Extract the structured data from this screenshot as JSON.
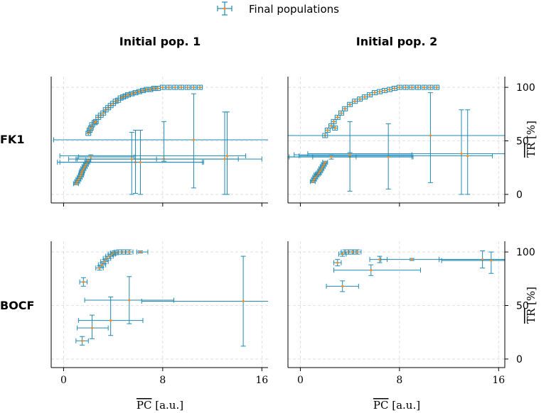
{
  "colors": {
    "errorbar": "#1f8ab4",
    "marker": "#ff8c1a",
    "grid": "#d9d9d9",
    "axis": "#000000"
  },
  "legend": {
    "label": "Final populations"
  },
  "column_titles": [
    "Initial pop. 1",
    "Initial pop. 2"
  ],
  "row_titles": [
    "FK1",
    "BOCF"
  ],
  "axis_text": {
    "xlabel_bar": "PC",
    "xlabel_unit": " [a.u.]",
    "ylabel_bar": "TR",
    "ylabel_unit": " [%]",
    "xticks": [
      "0",
      "8",
      "16"
    ],
    "yticks": [
      "0",
      "50",
      "100"
    ]
  },
  "chart_data": [
    {
      "type": "scatter",
      "title": "FK1 – Initial pop. 1",
      "xlim": [
        -1,
        16.5
      ],
      "ylim": [
        -8,
        110
      ],
      "xticks": [
        0,
        8,
        16
      ],
      "yticks": [
        0,
        50,
        100
      ],
      "grid": true,
      "points": [
        [
          1.0,
          10,
          0.2,
          0.2,
          1,
          1
        ],
        [
          1.1,
          12,
          0.2,
          0.2,
          1,
          1
        ],
        [
          1.2,
          14,
          0.2,
          0.2,
          1,
          1
        ],
        [
          1.3,
          16,
          0.2,
          0.2,
          1,
          1
        ],
        [
          1.4,
          18,
          0.2,
          0.2,
          1,
          1
        ],
        [
          1.45,
          20,
          0.2,
          0.2,
          1,
          1
        ],
        [
          1.5,
          22,
          0.2,
          0.2,
          1,
          1
        ],
        [
          1.6,
          24,
          0.2,
          0.2,
          1,
          1
        ],
        [
          1.7,
          26,
          0.2,
          0.2,
          1,
          1
        ],
        [
          1.8,
          28,
          0.2,
          0.2,
          1,
          1
        ],
        [
          1.9,
          30,
          0.2,
          0.2,
          1,
          1
        ],
        [
          2.0,
          32,
          0.2,
          0.2,
          1,
          1
        ],
        [
          2.0,
          57,
          0.2,
          0.2,
          2,
          2
        ],
        [
          2.1,
          60,
          0.2,
          0.2,
          2,
          2
        ],
        [
          2.2,
          62,
          0.2,
          0.2,
          2,
          2
        ],
        [
          2.3,
          65,
          0.2,
          0.2,
          2,
          2
        ],
        [
          2.5,
          67,
          0.2,
          0.2,
          2,
          2
        ],
        [
          2.6,
          68,
          0.2,
          0.2,
          2,
          2
        ],
        [
          2.8,
          72,
          0.2,
          0.2,
          2,
          2
        ],
        [
          3.0,
          74,
          0.2,
          0.2,
          2,
          2
        ],
        [
          3.2,
          76,
          0.2,
          0.2,
          2,
          2
        ],
        [
          3.4,
          79,
          0.2,
          0.2,
          2,
          2
        ],
        [
          3.6,
          81,
          0.2,
          0.2,
          2,
          2
        ],
        [
          3.8,
          83,
          0.2,
          0.2,
          2,
          2
        ],
        [
          4.0,
          85,
          0.2,
          0.2,
          2,
          2
        ],
        [
          4.2,
          87,
          0.2,
          0.2,
          2,
          2
        ],
        [
          4.4,
          88,
          0.2,
          0.2,
          2,
          2
        ],
        [
          4.6,
          90,
          0.2,
          0.2,
          2,
          2
        ],
        [
          4.8,
          91,
          0.2,
          0.2,
          2,
          2
        ],
        [
          5.0,
          92,
          0.2,
          0.2,
          2,
          2
        ],
        [
          5.2,
          93,
          0.2,
          0.2,
          2,
          2
        ],
        [
          5.5,
          94,
          0.2,
          0.2,
          2,
          2
        ],
        [
          5.8,
          95,
          0.2,
          0.2,
          2,
          2
        ],
        [
          6.1,
          96,
          0.2,
          0.2,
          2,
          2
        ],
        [
          6.4,
          97,
          0.2,
          0.2,
          2,
          2
        ],
        [
          6.7,
          98,
          0.2,
          0.2,
          2,
          2
        ],
        [
          7.0,
          98,
          0.2,
          0.2,
          2,
          2
        ],
        [
          7.3,
          99,
          0.2,
          0.2,
          2,
          2
        ],
        [
          7.6,
          99,
          0.2,
          0.2,
          2,
          2
        ],
        [
          8.0,
          100,
          0.2,
          0.2,
          2,
          2
        ],
        [
          8.5,
          100,
          0.2,
          0.2,
          2,
          2
        ],
        [
          9.0,
          100,
          0.2,
          0.2,
          2,
          2
        ],
        [
          9.5,
          100,
          0.2,
          0.2,
          2,
          2
        ],
        [
          10.0,
          100,
          0.2,
          0.2,
          2,
          2
        ],
        [
          10.5,
          100,
          0.2,
          0.2,
          2,
          2
        ],
        [
          11.0,
          100,
          0.2,
          0.2,
          2,
          2
        ],
        [
          8.1,
          33,
          7.0,
          6.0,
          2,
          35
        ],
        [
          5.8,
          30,
          6.3,
          5.5,
          29,
          30
        ],
        [
          6.2,
          30,
          6.5,
          5.0,
          30,
          30
        ],
        [
          10.5,
          51,
          11.3,
          7.5,
          45,
          43
        ],
        [
          13.2,
          36,
          13.5,
          1.5,
          36,
          41
        ],
        [
          13.0,
          33,
          12.6,
          3.0,
          33,
          44
        ],
        [
          5.5,
          33,
          4.5,
          2.0,
          33,
          25
        ],
        [
          2.2,
          35,
          1.0,
          3.5,
          2,
          2
        ]
      ]
    },
    {
      "type": "scatter",
      "title": "FK1 – Initial pop. 2",
      "xlim": [
        -1,
        16.5
      ],
      "ylim": [
        -8,
        110
      ],
      "xticks": [
        0,
        8,
        16
      ],
      "yticks": [
        0,
        50,
        100
      ],
      "grid": true,
      "points": [
        [
          1.0,
          12,
          0.2,
          0.2,
          1,
          1
        ],
        [
          1.1,
          14,
          0.2,
          0.2,
          1,
          1
        ],
        [
          1.2,
          16,
          0.2,
          0.2,
          1,
          1
        ],
        [
          1.3,
          18,
          0.2,
          0.2,
          1,
          1
        ],
        [
          1.4,
          19,
          0.2,
          0.2,
          1,
          1
        ],
        [
          1.5,
          20,
          0.2,
          0.2,
          1,
          1
        ],
        [
          1.6,
          22,
          0.2,
          0.2,
          1,
          1
        ],
        [
          1.7,
          24,
          0.2,
          0.2,
          1,
          1
        ],
        [
          1.8,
          26,
          0.2,
          0.2,
          1,
          1
        ],
        [
          1.9,
          28,
          0.2,
          0.2,
          1,
          1
        ],
        [
          2.0,
          30,
          0.2,
          0.2,
          1,
          1
        ],
        [
          2.0,
          55,
          0.2,
          0.2,
          2,
          2
        ],
        [
          2.2,
          60,
          0.2,
          0.2,
          2,
          2
        ],
        [
          2.5,
          64,
          0.2,
          0.2,
          2,
          2
        ],
        [
          2.7,
          68,
          0.2,
          0.2,
          2,
          2
        ],
        [
          3.0,
          72,
          0.2,
          0.2,
          2,
          2
        ],
        [
          3.3,
          76,
          0.2,
          0.2,
          2,
          2
        ],
        [
          3.6,
          80,
          0.2,
          0.2,
          2,
          2
        ],
        [
          4.0,
          84,
          0.2,
          0.2,
          2,
          2
        ],
        [
          4.4,
          87,
          0.2,
          0.2,
          2,
          2
        ],
        [
          4.8,
          89,
          0.2,
          0.2,
          2,
          2
        ],
        [
          5.2,
          91,
          0.2,
          0.2,
          2,
          2
        ],
        [
          5.6,
          93,
          0.2,
          0.2,
          2,
          2
        ],
        [
          6.0,
          95,
          0.2,
          0.2,
          2,
          2
        ],
        [
          6.4,
          96,
          0.2,
          0.2,
          2,
          2
        ],
        [
          6.8,
          97,
          0.2,
          0.2,
          2,
          2
        ],
        [
          7.2,
          98,
          0.2,
          0.2,
          2,
          2
        ],
        [
          7.6,
          99,
          0.2,
          0.2,
          2,
          2
        ],
        [
          8.0,
          100,
          0.2,
          0.2,
          2,
          2
        ],
        [
          8.5,
          100,
          0.2,
          0.2,
          2,
          2
        ],
        [
          9.0,
          100,
          0.2,
          0.2,
          2,
          2
        ],
        [
          9.5,
          100,
          0.2,
          0.2,
          2,
          2
        ],
        [
          10.0,
          100,
          0.2,
          0.2,
          2,
          2
        ],
        [
          10.5,
          100,
          0.2,
          0.2,
          2,
          2
        ],
        [
          11.0,
          100,
          0.2,
          0.2,
          2,
          2
        ],
        [
          2.8,
          62,
          0.2,
          0.2,
          2,
          2
        ],
        [
          4.0,
          35,
          5.0,
          5.0,
          32,
          33
        ],
        [
          7.1,
          35,
          8.0,
          2.0,
          30,
          31
        ],
        [
          10.5,
          55,
          12.0,
          6.0,
          44,
          40
        ],
        [
          13.5,
          36,
          13.6,
          2.0,
          36,
          43
        ],
        [
          13.0,
          38,
          12.4,
          3.5,
          38,
          41
        ],
        [
          4.0,
          37,
          4.5,
          5.0,
          2,
          2
        ],
        [
          2.5,
          35,
          1.5,
          2.0,
          2,
          2
        ]
      ]
    },
    {
      "type": "scatter",
      "title": "BOCF – Initial pop. 1",
      "xlim": [
        -1,
        16.5
      ],
      "ylim": [
        -8,
        110
      ],
      "xticks": [
        0,
        8,
        16
      ],
      "yticks": [
        0,
        50,
        100
      ],
      "grid": true,
      "points": [
        [
          1.6,
          72,
          0.3,
          0.3,
          4,
          4
        ],
        [
          2.9,
          85,
          0.3,
          0.3,
          2,
          2
        ],
        [
          3.1,
          88,
          0.3,
          0.3,
          2,
          2
        ],
        [
          3.3,
          91,
          0.3,
          0.3,
          2,
          2
        ],
        [
          3.5,
          94,
          0.3,
          0.3,
          2,
          2
        ],
        [
          3.7,
          96,
          0.3,
          0.3,
          2,
          2
        ],
        [
          3.9,
          98,
          0.3,
          0.3,
          2,
          2
        ],
        [
          4.1,
          99,
          0.3,
          0.3,
          2,
          2
        ],
        [
          4.4,
          100,
          0.3,
          0.3,
          2,
          2
        ],
        [
          4.7,
          100,
          0.3,
          0.3,
          2,
          2
        ],
        [
          5.0,
          100,
          0.3,
          0.3,
          2,
          2
        ],
        [
          5.3,
          100,
          0.3,
          0.3,
          2,
          2
        ],
        [
          6.2,
          100,
          0.3,
          0.6,
          1,
          1
        ],
        [
          1.5,
          17,
          0.5,
          0.5,
          4,
          4
        ],
        [
          2.3,
          29,
          1.2,
          1.3,
          10,
          12
        ],
        [
          3.8,
          36,
          2.6,
          2.6,
          14,
          22
        ],
        [
          5.3,
          55,
          3.6,
          3.6,
          22,
          22
        ],
        [
          14.5,
          54,
          8.2,
          8.4,
          42,
          42
        ]
      ]
    },
    {
      "type": "scatter",
      "title": "BOCF – Initial pop. 2",
      "xlim": [
        -1,
        16.5
      ],
      "ylim": [
        -8,
        110
      ],
      "xticks": [
        0,
        8,
        16
      ],
      "yticks": [
        0,
        50,
        100
      ],
      "grid": true,
      "points": [
        [
          3.0,
          90,
          0.3,
          0.3,
          3,
          3
        ],
        [
          3.4,
          98,
          0.3,
          0.3,
          2,
          2
        ],
        [
          3.6,
          100,
          0.3,
          0.3,
          2,
          2
        ],
        [
          3.9,
          100,
          0.3,
          0.3,
          2,
          2
        ],
        [
          4.2,
          100,
          0.3,
          0.3,
          2,
          2
        ],
        [
          4.6,
          100,
          0.3,
          0.3,
          2,
          2
        ],
        [
          6.4,
          93,
          0.8,
          0.6,
          3,
          3
        ],
        [
          9.0,
          93,
          2.5,
          7.5,
          1,
          1
        ],
        [
          5.7,
          83,
          3.0,
          4.0,
          5,
          5
        ],
        [
          3.4,
          68,
          1.3,
          1.3,
          5,
          5
        ],
        [
          14.7,
          93,
          3.5,
          3.5,
          8,
          8
        ],
        [
          15.4,
          92,
          4.0,
          1.1,
          12,
          8
        ]
      ]
    }
  ]
}
